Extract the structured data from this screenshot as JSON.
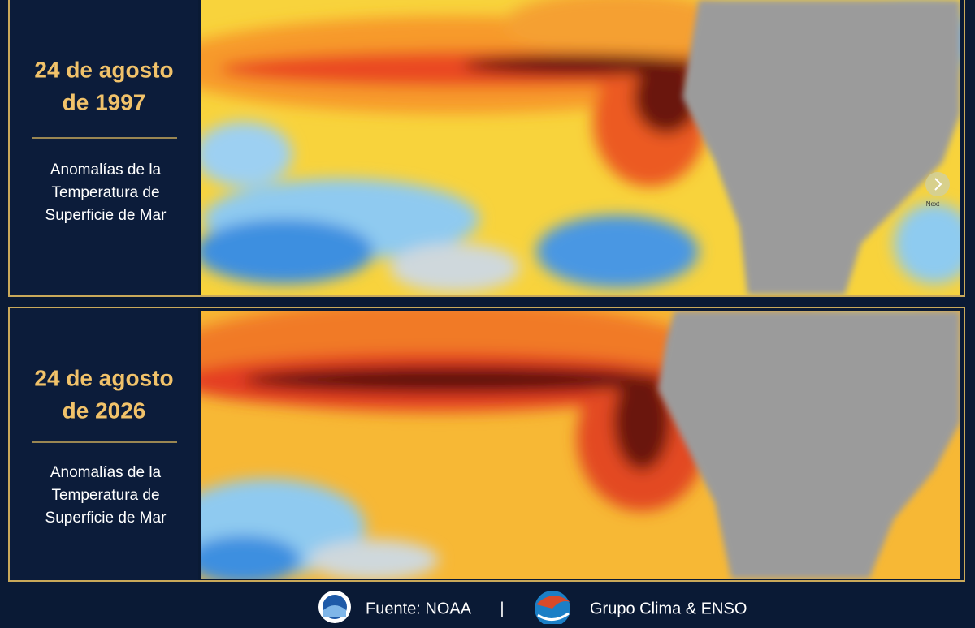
{
  "panels": [
    {
      "date_line1": "24 de agosto",
      "date_line2": "de 1997",
      "subtitle": [
        "Anomalías de la",
        "Temperatura de",
        "Superficie de Mar"
      ],
      "next_label": "Next"
    },
    {
      "date_line1": "24 de agosto",
      "date_line2": "de 2026",
      "subtitle": [
        "Anomalías de la",
        "Temperatura de",
        "Superficie de Mar"
      ]
    }
  ],
  "footer": {
    "source": "Fuente: NOAA",
    "separator": "|",
    "group": "Grupo Clima & ENSO"
  }
}
